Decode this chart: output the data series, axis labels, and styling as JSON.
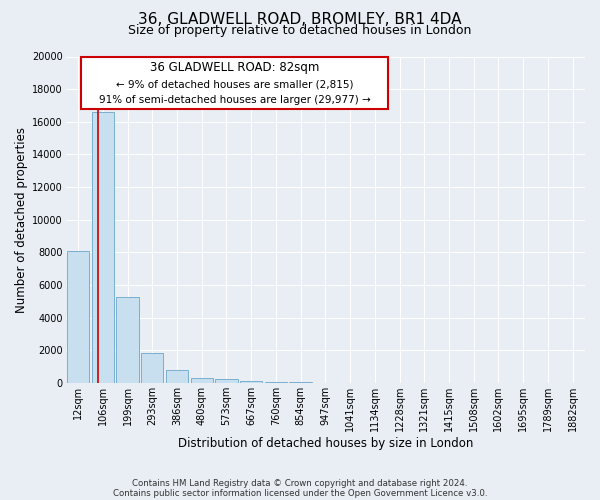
{
  "title": "36, GLADWELL ROAD, BROMLEY, BR1 4DA",
  "subtitle": "Size of property relative to detached houses in London",
  "bar_labels": [
    "12sqm",
    "106sqm",
    "199sqm",
    "293sqm",
    "386sqm",
    "480sqm",
    "573sqm",
    "667sqm",
    "760sqm",
    "854sqm",
    "947sqm",
    "1041sqm",
    "1134sqm",
    "1228sqm",
    "1321sqm",
    "1415sqm",
    "1508sqm",
    "1602sqm",
    "1695sqm",
    "1789sqm",
    "1882sqm"
  ],
  "bar_values": [
    8100,
    16600,
    5300,
    1850,
    780,
    300,
    270,
    150,
    80,
    50,
    30,
    20,
    15,
    10,
    8,
    6,
    5,
    4,
    3,
    2,
    1
  ],
  "bar_color": "#c8dff0",
  "bar_edge_color": "#7aafcf",
  "background_color": "#e8eef4",
  "plot_bg_color": "#e8eef4",
  "ylabel": "Number of detached properties",
  "xlabel": "Distribution of detached houses by size in London",
  "ylim": [
    0,
    20000
  ],
  "yticks": [
    0,
    2000,
    4000,
    6000,
    8000,
    10000,
    12000,
    14000,
    16000,
    18000,
    20000
  ],
  "vline_x": 0.82,
  "vline_color": "#cc0000",
  "annotation_title": "36 GLADWELL ROAD: 82sqm",
  "annotation_line1": "← 9% of detached houses are smaller (2,815)",
  "annotation_line2": "91% of semi-detached houses are larger (29,977) →",
  "annotation_box_color": "#ffffff",
  "annotation_box_edge": "#cc0000",
  "footer1": "Contains HM Land Registry data © Crown copyright and database right 2024.",
  "footer2": "Contains public sector information licensed under the Open Government Licence v3.0.",
  "grid_color": "#ffffff",
  "title_fontsize": 11,
  "subtitle_fontsize": 9,
  "tick_fontsize": 7,
  "ylabel_fontsize": 8.5,
  "xlabel_fontsize": 8.5
}
